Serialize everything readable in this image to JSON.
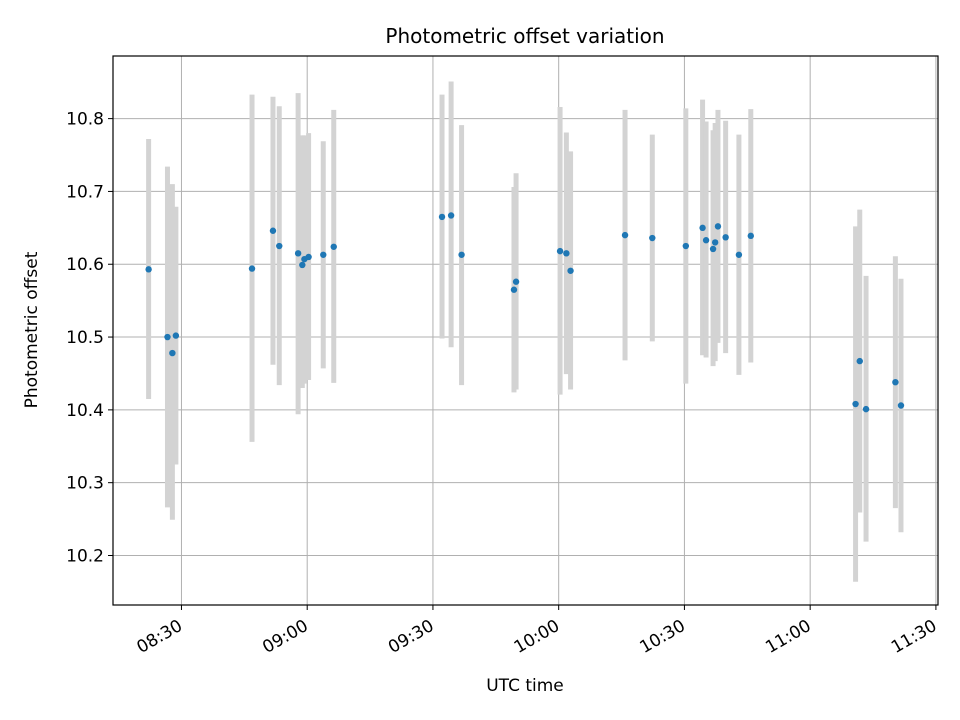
{
  "chart_data": {
    "type": "scatter",
    "title": "Photometric offset variation",
    "xlabel": "UTC time",
    "ylabel": "Photometric offset",
    "x_ticks": [
      "08:30",
      "09:00",
      "09:30",
      "10:00",
      "10:30",
      "11:00",
      "11:30"
    ],
    "y_ticks": [
      "10.2",
      "10.3",
      "10.4",
      "10.5",
      "10.6",
      "10.7",
      "10.8"
    ],
    "xlim": [
      "08:13:40",
      "11:30:30"
    ],
    "ylim": [
      10.132,
      10.886
    ],
    "grid": true,
    "point_color": "#1f77b4",
    "errorbar_color": "#d3d3d3",
    "points": [
      {
        "x": "08:22:10",
        "y": 10.593,
        "lo": 10.415,
        "hi": 10.772
      },
      {
        "x": "08:26:40",
        "y": 10.5,
        "lo": 10.266,
        "hi": 10.734
      },
      {
        "x": "08:27:50",
        "y": 10.478,
        "lo": 10.249,
        "hi": 10.71
      },
      {
        "x": "08:28:40",
        "y": 10.502,
        "lo": 10.325,
        "hi": 10.679
      },
      {
        "x": "08:46:50",
        "y": 10.594,
        "lo": 10.356,
        "hi": 10.833
      },
      {
        "x": "08:51:50",
        "y": 10.646,
        "lo": 10.462,
        "hi": 10.83
      },
      {
        "x": "08:53:20",
        "y": 10.625,
        "lo": 10.434,
        "hi": 10.817
      },
      {
        "x": "08:57:50",
        "y": 10.615,
        "lo": 10.394,
        "hi": 10.835
      },
      {
        "x": "08:58:50",
        "y": 10.599,
        "lo": 10.43,
        "hi": 10.777
      },
      {
        "x": "08:59:20",
        "y": 10.607,
        "lo": 10.436,
        "hi": 10.777
      },
      {
        "x": "09:00:20",
        "y": 10.61,
        "lo": 10.441,
        "hi": 10.78
      },
      {
        "x": "09:03:50",
        "y": 10.613,
        "lo": 10.457,
        "hi": 10.769
      },
      {
        "x": "09:06:20",
        "y": 10.624,
        "lo": 10.437,
        "hi": 10.812
      },
      {
        "x": "09:32:10",
        "y": 10.665,
        "lo": 10.498,
        "hi": 10.833
      },
      {
        "x": "09:34:20",
        "y": 10.667,
        "lo": 10.486,
        "hi": 10.851
      },
      {
        "x": "09:36:50",
        "y": 10.613,
        "lo": 10.434,
        "hi": 10.791
      },
      {
        "x": "09:49:20",
        "y": 10.565,
        "lo": 10.424,
        "hi": 10.706
      },
      {
        "x": "09:49:50",
        "y": 10.576,
        "lo": 10.428,
        "hi": 10.725
      },
      {
        "x": "10:00:20",
        "y": 10.618,
        "lo": 10.421,
        "hi": 10.816
      },
      {
        "x": "10:01:50",
        "y": 10.615,
        "lo": 10.449,
        "hi": 10.781
      },
      {
        "x": "10:02:50",
        "y": 10.591,
        "lo": 10.428,
        "hi": 10.755
      },
      {
        "x": "10:15:50",
        "y": 10.64,
        "lo": 10.468,
        "hi": 10.812
      },
      {
        "x": "10:22:20",
        "y": 10.636,
        "lo": 10.494,
        "hi": 10.778
      },
      {
        "x": "10:30:20",
        "y": 10.625,
        "lo": 10.436,
        "hi": 10.814
      },
      {
        "x": "10:34:20",
        "y": 10.65,
        "lo": 10.475,
        "hi": 10.826
      },
      {
        "x": "10:35:10",
        "y": 10.633,
        "lo": 10.472,
        "hi": 10.796
      },
      {
        "x": "10:36:50",
        "y": 10.621,
        "lo": 10.46,
        "hi": 10.784
      },
      {
        "x": "10:37:20",
        "y": 10.63,
        "lo": 10.467,
        "hi": 10.794
      },
      {
        "x": "10:38:00",
        "y": 10.652,
        "lo": 10.492,
        "hi": 10.812
      },
      {
        "x": "10:39:50",
        "y": 10.637,
        "lo": 10.478,
        "hi": 10.797
      },
      {
        "x": "10:43:00",
        "y": 10.613,
        "lo": 10.448,
        "hi": 10.778
      },
      {
        "x": "10:45:50",
        "y": 10.639,
        "lo": 10.465,
        "hi": 10.813
      },
      {
        "x": "11:10:50",
        "y": 10.408,
        "lo": 10.164,
        "hi": 10.652
      },
      {
        "x": "11:11:50",
        "y": 10.467,
        "lo": 10.259,
        "hi": 10.675
      },
      {
        "x": "11:13:20",
        "y": 10.401,
        "lo": 10.219,
        "hi": 10.584
      },
      {
        "x": "11:20:20",
        "y": 10.438,
        "lo": 10.265,
        "hi": 10.611
      },
      {
        "x": "11:21:40",
        "y": 10.406,
        "lo": 10.232,
        "hi": 10.58
      }
    ]
  }
}
